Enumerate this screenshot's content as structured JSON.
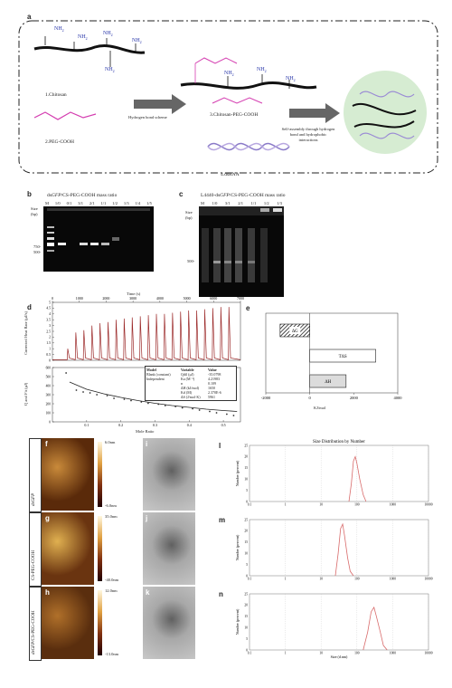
{
  "panel_a": {
    "letter": "a",
    "items": {
      "chitosan": "1.Chitosan",
      "peg": "2.PEG-COOH",
      "cs_peg": "3.Chitosan-PEG-COOH",
      "dsrna": "4.dsRNA",
      "nh2": "NH",
      "nh2_sub": "2",
      "arrow1": "Hydrogen bond scheme",
      "arrow2": "Self-assembly through hydrogen bond and hydrophobic interactions"
    }
  },
  "panel_b": {
    "letter": "b",
    "title_prefix": "ds",
    "title_italic": "GFP",
    "title_suffix": "/CS-PEG-COOH mass ratio",
    "lanes": [
      "M",
      "1/0",
      "0/1",
      "3/1",
      "2/1",
      "1/1",
      "1/2",
      "1/3",
      "1/4",
      "1/5"
    ],
    "size_label": "Size",
    "size_unit": "(bp)",
    "markers": [
      "750-",
      "500-"
    ]
  },
  "panel_c": {
    "letter": "c",
    "title_prefix": "L4440-ds",
    "title_italic": "GFP",
    "title_suffix": "/CS-PEG-COOH mass ratio",
    "lanes": [
      "M",
      "1/0",
      "3/1",
      "2/1",
      "1/1",
      "1/2",
      "1/3"
    ],
    "size_label": "Size",
    "size_unit": "(bp)",
    "markers": [
      "500-"
    ]
  },
  "panel_d": {
    "letter": "d",
    "top_xlabel": "Time (s)",
    "top_ylabel": "Corrected Heat Rate (μJ/s)",
    "bottom_xlabel": "Mole Ratio",
    "bottom_ylabel": "Q and Fit (μJ)",
    "table": {
      "header": [
        "Model",
        "Variable",
        "Value"
      ],
      "rows": [
        [
          "Blank (constant)",
          "Qdil (μJ)",
          "-35.0798"
        ],
        [
          "Independent",
          "Ka (M⁻¹)",
          "4.21983"
        ],
        [
          "",
          "n",
          "0.109"
        ],
        [
          "",
          "ΔH (kJ/mol)",
          "1650"
        ],
        [
          "",
          "Kd (M)",
          "2.370E-6"
        ],
        [
          "",
          "ΔS (J/mol·K)",
          "5961"
        ]
      ]
    }
  },
  "chart_data": [
    {
      "type": "line",
      "title": "",
      "xlabel": "Time (s)",
      "ylabel": "Corrected Heat Rate (μJ/s)",
      "xlim": [
        0,
        7000
      ],
      "ylim": [
        0,
        5
      ],
      "x_ticks": [
        0,
        1000,
        2000,
        3000,
        4000,
        5000,
        6000,
        7000
      ],
      "y_ticks": [
        0,
        0.5,
        1,
        1.5,
        2,
        2.5,
        3,
        3.5,
        4,
        4.5,
        5
      ],
      "series": [
        {
          "peak_times": [
            550,
            850,
            1150,
            1450,
            1750,
            2050,
            2350,
            2650,
            2950,
            3250,
            3550,
            3850,
            4150,
            4450,
            4750,
            5050,
            5350,
            5650,
            5950,
            6250,
            6550
          ],
          "peak_heights": [
            1.0,
            2.4,
            2.6,
            3.0,
            3.2,
            3.3,
            3.5,
            3.6,
            3.7,
            3.8,
            3.9,
            4.0,
            4.0,
            4.1,
            4.2,
            4.3,
            4.3,
            4.4,
            4.5,
            4.6,
            4.6
          ]
        }
      ]
    },
    {
      "type": "scatter",
      "title": "",
      "xlabel": "Mole Ratio",
      "ylabel": "Q and Fit (μJ)",
      "xlim": [
        0,
        0.55
      ],
      "ylim": [
        0,
        600
      ],
      "x_ticks": [
        0.1,
        0.2,
        0.3,
        0.4,
        0.5
      ],
      "y_ticks": [
        0,
        100,
        200,
        300,
        400,
        500,
        600
      ],
      "series": [
        {
          "x": [
            0.04,
            0.07,
            0.09,
            0.11,
            0.13,
            0.16,
            0.18,
            0.21,
            0.23,
            0.26,
            0.28,
            0.31,
            0.33,
            0.36,
            0.38,
            0.41,
            0.43,
            0.46,
            0.48,
            0.51,
            0.53
          ],
          "y": [
            540,
            350,
            330,
            320,
            300,
            290,
            260,
            250,
            235,
            220,
            205,
            195,
            180,
            170,
            155,
            145,
            130,
            115,
            100,
            85,
            70
          ]
        }
      ],
      "fit": {
        "x": [
          0.05,
          0.1,
          0.15,
          0.2,
          0.25,
          0.3,
          0.35,
          0.4,
          0.45,
          0.5,
          0.54
        ],
        "y": [
          440,
          360,
          310,
          270,
          235,
          205,
          180,
          160,
          140,
          125,
          115
        ]
      }
    },
    {
      "type": "bar",
      "orientation": "horizontal",
      "title": "",
      "xlabel": "KJ/mol",
      "xlim": [
        -2000,
        4000
      ],
      "x_ticks": [
        -2000,
        0,
        2000,
        4000
      ],
      "categories": [
        "ΔG",
        "TΔS",
        "ΔH"
      ],
      "values": [
        -1350,
        3000,
        1650
      ]
    },
    {
      "type": "line",
      "title": "Size Distribution by Number",
      "xlabel": "",
      "ylabel": "Number (percent)",
      "xscale": "log",
      "xlim": [
        0.1,
        10000
      ],
      "ylim": [
        0,
        25
      ],
      "x_ticks": [
        0.1,
        1,
        10,
        100,
        1000,
        10000
      ],
      "y_ticks": [
        0,
        5,
        10,
        15,
        20,
        25
      ],
      "series": [
        {
          "x": [
            60,
            70,
            80,
            90,
            100,
            120,
            150,
            180
          ],
          "y": [
            0,
            8,
            18,
            20,
            17,
            10,
            3,
            0
          ]
        }
      ]
    },
    {
      "type": "line",
      "title": "",
      "xlabel": "",
      "ylabel": "Number (percent)",
      "xscale": "log",
      "xlim": [
        0.1,
        10000
      ],
      "ylim": [
        0,
        25
      ],
      "x_ticks": [
        0.1,
        1,
        10,
        100,
        1000,
        10000
      ],
      "y_ticks": [
        0,
        5,
        10,
        15,
        20,
        25
      ],
      "series": [
        {
          "x": [
            25,
            30,
            35,
            40,
            45,
            55,
            65,
            80
          ],
          "y": [
            0,
            10,
            21,
            23,
            18,
            8,
            2,
            0
          ]
        }
      ]
    },
    {
      "type": "line",
      "title": "",
      "xlabel": "Size (d.nm)",
      "ylabel": "Number (percent)",
      "xscale": "log",
      "xlim": [
        0.1,
        10000
      ],
      "ylim": [
        0,
        25
      ],
      "x_ticks": [
        0.1,
        1,
        10,
        100,
        1000,
        10000
      ],
      "y_ticks": [
        0,
        5,
        10,
        15,
        20,
        25
      ],
      "series": [
        {
          "x": [
            150,
            200,
            250,
            300,
            350,
            450,
            550,
            700
          ],
          "y": [
            0,
            8,
            17,
            19,
            15,
            8,
            2,
            0
          ]
        }
      ]
    }
  ],
  "panel_e": {
    "letter": "e",
    "xlabel": "KJ/mol"
  },
  "afm": {
    "rows": [
      {
        "letter_afm": "f",
        "letter_tem": "i",
        "sample_italic": "dsGFP",
        "sample_rest": "",
        "scale_top": "6.0nm",
        "scale_bottom": "-6.0nm",
        "dls_letter": "l"
      },
      {
        "letter_afm": "g",
        "letter_tem": "j",
        "sample_italic": "",
        "sample_rest": "CS-PEG-COOH",
        "scale_top": "35.0nm",
        "scale_bottom": "-40.0nm",
        "dls_letter": "m"
      },
      {
        "letter_afm": "h",
        "letter_tem": "k",
        "sample_italic": "dsGFP",
        "sample_rest": "/CS-PEG-COOH",
        "scale_top": "12.0nm",
        "scale_bottom": "-13.0nm",
        "dls_letter": "n"
      }
    ]
  },
  "colors": {
    "peak": "#9c2a2a",
    "fit": "#222222",
    "dls": "#d86a6a",
    "circle_bg": "#d6ecd2"
  }
}
